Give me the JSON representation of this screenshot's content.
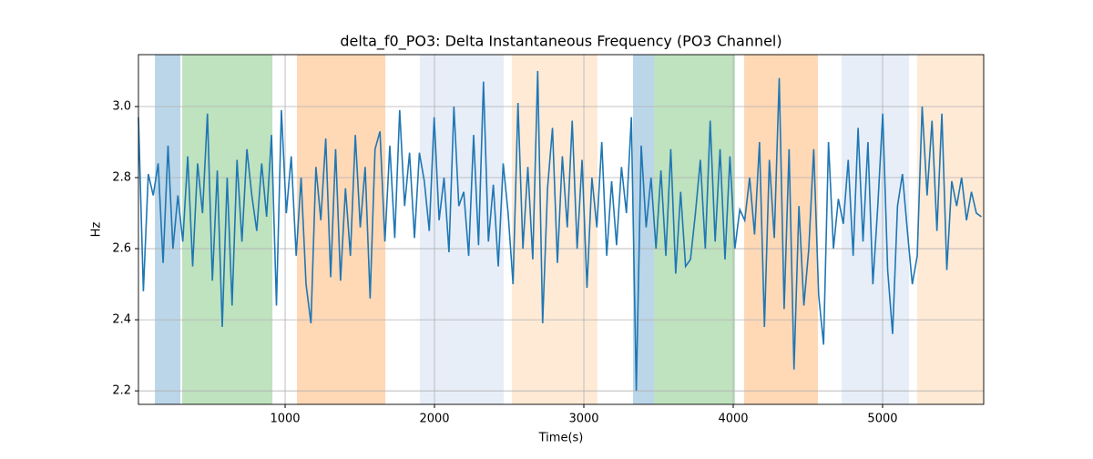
{
  "chart_data": {
    "type": "line",
    "title": "delta_f0_PO3: Delta Instantaneous Frequency (PO3 Channel)",
    "xlabel": "Time(s)",
    "ylabel": "Hz",
    "xlim": [
      18,
      5677
    ],
    "ylim": [
      2.162,
      3.146
    ],
    "xticks": [
      1000,
      2000,
      3000,
      4000,
      5000
    ],
    "yticks": [
      2.2,
      2.4,
      2.6,
      2.8,
      {
        "value": 3,
        "label": "3.0"
      }
    ],
    "grid": true,
    "spans": [
      {
        "x0": 128,
        "x1": 299,
        "color": "#1f77b4",
        "alpha": 0.3
      },
      {
        "x0": 311,
        "x1": 915,
        "color": "#2ca02c",
        "alpha": 0.3
      },
      {
        "x0": 1079,
        "x1": 1671,
        "color": "#ff7f0e",
        "alpha": 0.3
      },
      {
        "x0": 1902,
        "x1": 2463,
        "color": "#aec7e8",
        "alpha": 0.3
      },
      {
        "x0": 2518,
        "x1": 3091,
        "color": "#ffbb78",
        "alpha": 0.3
      },
      {
        "x0": 3329,
        "x1": 3470,
        "color": "#1f77b4",
        "alpha": 0.3
      },
      {
        "x0": 3470,
        "x1": 4012,
        "color": "#2ca02c",
        "alpha": 0.3
      },
      {
        "x0": 4073,
        "x1": 4567,
        "color": "#ff7f0e",
        "alpha": 0.3
      },
      {
        "x0": 4726,
        "x1": 5177,
        "color": "#aec7e8",
        "alpha": 0.3
      },
      {
        "x0": 5232,
        "x1": 5677,
        "color": "#ffbb78",
        "alpha": 0.3
      }
    ],
    "x": [
      18,
      51,
      84,
      117,
      150,
      183,
      216,
      249,
      282,
      315,
      348,
      381,
      414,
      447,
      480,
      513,
      546,
      579,
      612,
      645,
      678,
      711,
      744,
      777,
      810,
      843,
      876,
      909,
      942,
      975,
      1008,
      1041,
      1074,
      1107,
      1140,
      1173,
      1206,
      1239,
      1272,
      1305,
      1338,
      1371,
      1404,
      1437,
      1470,
      1503,
      1536,
      1569,
      1602,
      1635,
      1668,
      1701,
      1734,
      1767,
      1800,
      1833,
      1866,
      1899,
      1932,
      1965,
      1998,
      2031,
      2064,
      2097,
      2130,
      2163,
      2196,
      2229,
      2262,
      2295,
      2328,
      2361,
      2394,
      2427,
      2460,
      2493,
      2526,
      2559,
      2592,
      2625,
      2658,
      2691,
      2724,
      2757,
      2790,
      2823,
      2856,
      2889,
      2922,
      2955,
      2988,
      3021,
      3054,
      3087,
      3120,
      3153,
      3186,
      3219,
      3252,
      3285,
      3318,
      3351,
      3384,
      3417,
      3450,
      3483,
      3516,
      3549,
      3582,
      3615,
      3648,
      3681,
      3714,
      3747,
      3780,
      3813,
      3846,
      3879,
      3912,
      3945,
      3978,
      4011,
      4044,
      4077,
      4110,
      4143,
      4176,
      4209,
      4242,
      4275,
      4308,
      4341,
      4374,
      4407,
      4440,
      4473,
      4506,
      4539,
      4572,
      4605,
      4638,
      4671,
      4704,
      4737,
      4770,
      4803,
      4836,
      4869,
      4902,
      4935,
      4968,
      5001,
      5034,
      5067,
      5100,
      5133,
      5166,
      5199,
      5232,
      5265,
      5298,
      5331,
      5364,
      5397,
      5430,
      5463,
      5496,
      5529,
      5562,
      5595,
      5628,
      5661
    ],
    "series": [
      {
        "color": "#1f77b4",
        "values": [
          2.97,
          2.48,
          2.81,
          2.75,
          2.84,
          2.56,
          2.89,
          2.6,
          2.75,
          2.62,
          2.86,
          2.55,
          2.84,
          2.7,
          2.98,
          2.51,
          2.82,
          2.38,
          2.8,
          2.44,
          2.85,
          2.62,
          2.88,
          2.75,
          2.65,
          2.84,
          2.69,
          2.92,
          2.44,
          2.99,
          2.7,
          2.86,
          2.58,
          2.8,
          2.5,
          2.39,
          2.83,
          2.68,
          2.91,
          2.52,
          2.88,
          2.51,
          2.77,
          2.58,
          2.92,
          2.66,
          2.83,
          2.46,
          2.88,
          2.93,
          2.62,
          2.89,
          2.63,
          2.99,
          2.72,
          2.87,
          2.63,
          2.87,
          2.79,
          2.65,
          2.97,
          2.68,
          2.8,
          2.59,
          3.0,
          2.72,
          2.76,
          2.58,
          2.92,
          2.61,
          3.07,
          2.62,
          2.78,
          2.55,
          2.84,
          2.7,
          2.5,
          3.01,
          2.6,
          2.83,
          2.57,
          3.1,
          2.39,
          2.77,
          2.94,
          2.56,
          2.86,
          2.66,
          2.96,
          2.6,
          2.85,
          2.49,
          2.8,
          2.66,
          2.9,
          2.58,
          2.79,
          2.61,
          2.83,
          2.7,
          2.97,
          2.2,
          2.89,
          2.66,
          2.8,
          2.6,
          2.82,
          2.58,
          2.88,
          2.53,
          2.76,
          2.55,
          2.57,
          2.7,
          2.85,
          2.6,
          2.96,
          2.62,
          2.88,
          2.57,
          2.86,
          2.6,
          2.71,
          2.68,
          2.8,
          2.64,
          2.9,
          2.38,
          2.85,
          2.63,
          3.08,
          2.43,
          2.88,
          2.26,
          2.72,
          2.44,
          2.6,
          2.88,
          2.47,
          2.33,
          2.9,
          2.6,
          2.74,
          2.67,
          2.85,
          2.58,
          2.94,
          2.62,
          2.9,
          2.5,
          2.72,
          2.98,
          2.54,
          2.36,
          2.72,
          2.81,
          2.65,
          2.5,
          2.58,
          3.0,
          2.75,
          2.96,
          2.65,
          2.98,
          2.54,
          2.79,
          2.72,
          2.8,
          2.68,
          2.76,
          2.7,
          2.69
        ]
      }
    ]
  }
}
